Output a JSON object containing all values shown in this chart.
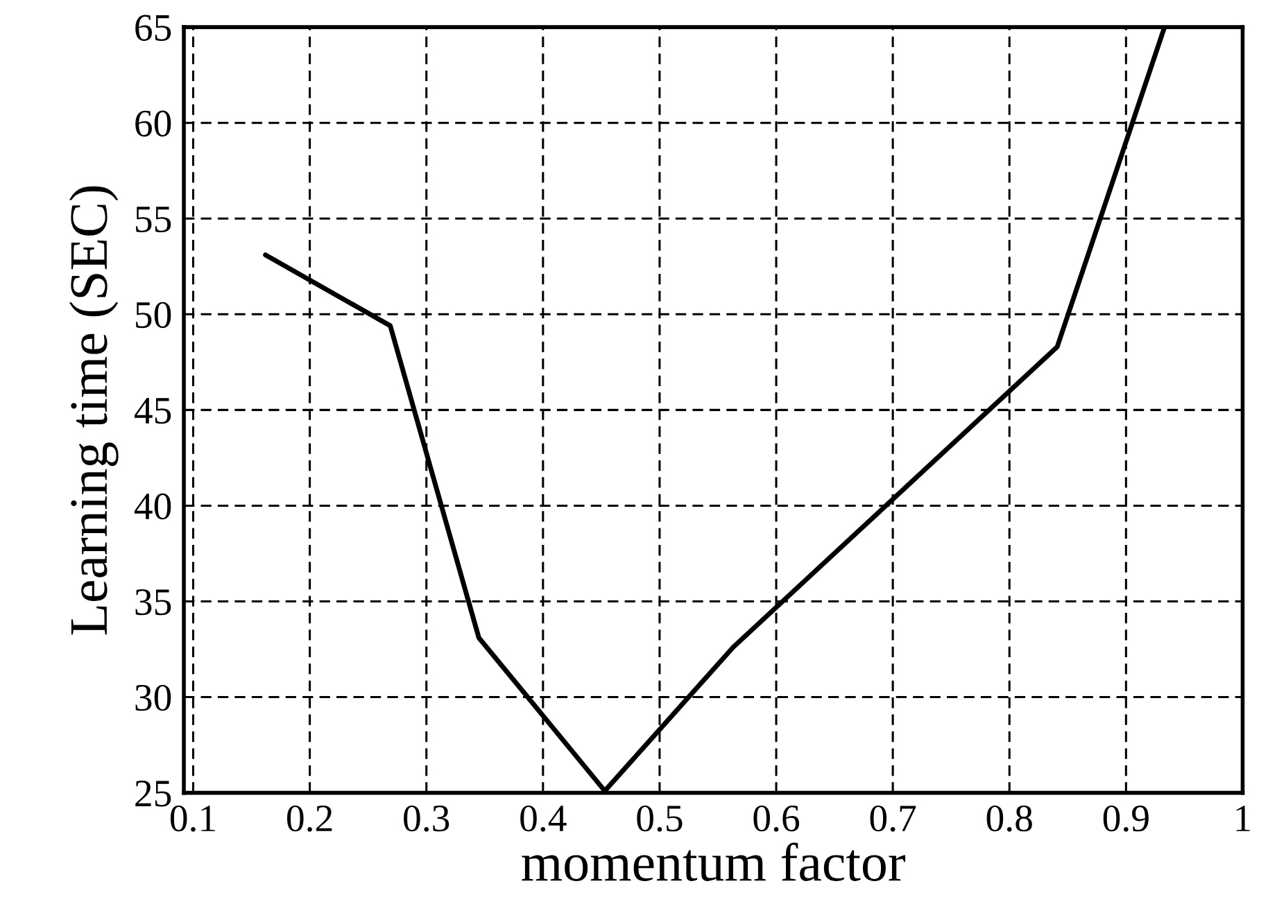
{
  "chart_data": {
    "type": "line",
    "xlabel": "momentum factor",
    "ylabel": "Learning time (SEC)",
    "x": [
      0.162,
      0.269,
      0.345,
      0.453,
      0.563,
      0.841,
      0.933
    ],
    "series": [
      {
        "color": "#000000",
        "values": [
          53.1,
          49.4,
          33.1,
          25.1,
          32.6,
          48.3,
          65
        ]
      }
    ],
    "xlim": [
      0.092,
      1.0
    ],
    "ylim": [
      25,
      65
    ],
    "xticks": [
      0.1,
      0.2,
      0.3,
      0.4,
      0.5,
      0.6,
      0.7,
      0.8,
      0.9,
      1
    ],
    "yticks": [
      25,
      30,
      35,
      40,
      45,
      50,
      55,
      60,
      65
    ],
    "grid": true,
    "line_style": "solid",
    "marker": "none"
  }
}
